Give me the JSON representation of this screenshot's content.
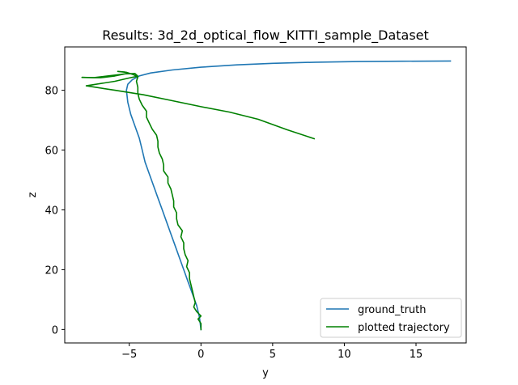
{
  "chart_data": {
    "type": "line",
    "title": "Results: 3d_2d_optical_flow_KITTI_sample_Dataset",
    "xlabel": "y",
    "ylabel": "z",
    "xlim": [
      -9.5,
      18.5
    ],
    "ylim": [
      -4.5,
      94.5
    ],
    "xticks": [
      -5,
      0,
      5,
      10,
      15
    ],
    "yticks": [
      0,
      20,
      40,
      60,
      80
    ],
    "xtick_labels": [
      "−5",
      "0",
      "5",
      "10",
      "15"
    ],
    "ytick_labels": [
      "0",
      "20",
      "40",
      "60",
      "80"
    ],
    "grid": false,
    "legend_position": "lower-right",
    "series": [
      {
        "name": "ground_truth",
        "color": "#1f77b4",
        "points": [
          [
            0.0,
            0.0
          ],
          [
            -0.1,
            4.0
          ],
          [
            -0.3,
            8.0
          ],
          [
            -0.6,
            12.0
          ],
          [
            -0.9,
            16.0
          ],
          [
            -1.2,
            20.0
          ],
          [
            -1.5,
            24.0
          ],
          [
            -1.8,
            28.0
          ],
          [
            -2.1,
            32.0
          ],
          [
            -2.4,
            36.0
          ],
          [
            -2.7,
            40.0
          ],
          [
            -3.0,
            44.0
          ],
          [
            -3.3,
            48.0
          ],
          [
            -3.6,
            52.0
          ],
          [
            -3.9,
            56.0
          ],
          [
            -4.1,
            60.0
          ],
          [
            -4.3,
            64.0
          ],
          [
            -4.6,
            68.0
          ],
          [
            -4.9,
            72.0
          ],
          [
            -5.1,
            76.0
          ],
          [
            -5.2,
            80.0
          ],
          [
            -5.1,
            82.0
          ],
          [
            -4.8,
            83.5
          ],
          [
            -4.3,
            84.8
          ],
          [
            -3.5,
            85.8
          ],
          [
            -2.0,
            86.8
          ],
          [
            0.0,
            87.7
          ],
          [
            2.5,
            88.5
          ],
          [
            5.0,
            89.0
          ],
          [
            8.0,
            89.4
          ],
          [
            11.0,
            89.6
          ],
          [
            14.0,
            89.7
          ],
          [
            17.4,
            89.8
          ]
        ]
      },
      {
        "name": "plotted trajectory",
        "color": "#008000",
        "points": [
          [
            0.0,
            0.0
          ],
          [
            0.0,
            2.0
          ],
          [
            -0.2,
            3.5
          ],
          [
            0.0,
            4.5
          ],
          [
            -0.3,
            6.0
          ],
          [
            -0.5,
            7.5
          ],
          [
            -0.4,
            9.0
          ],
          [
            -0.5,
            11.0
          ],
          [
            -0.6,
            13.0
          ],
          [
            -0.7,
            15.0
          ],
          [
            -0.8,
            17.0
          ],
          [
            -0.8,
            19.0
          ],
          [
            -1.0,
            21.0
          ],
          [
            -0.9,
            23.0
          ],
          [
            -1.1,
            25.0
          ],
          [
            -1.2,
            27.0
          ],
          [
            -1.2,
            29.0
          ],
          [
            -1.4,
            31.0
          ],
          [
            -1.3,
            33.0
          ],
          [
            -1.6,
            35.0
          ],
          [
            -1.7,
            37.0
          ],
          [
            -1.7,
            39.0
          ],
          [
            -1.9,
            41.0
          ],
          [
            -1.9,
            43.0
          ],
          [
            -2.0,
            45.0
          ],
          [
            -2.1,
            47.0
          ],
          [
            -2.3,
            49.0
          ],
          [
            -2.3,
            51.0
          ],
          [
            -2.6,
            53.0
          ],
          [
            -2.6,
            55.0
          ],
          [
            -2.7,
            57.0
          ],
          [
            -2.9,
            59.0
          ],
          [
            -3.0,
            61.0
          ],
          [
            -3.0,
            63.0
          ],
          [
            -3.1,
            65.0
          ],
          [
            -3.4,
            67.0
          ],
          [
            -3.6,
            69.0
          ],
          [
            -3.8,
            71.0
          ],
          [
            -3.8,
            73.0
          ],
          [
            -4.1,
            75.0
          ],
          [
            -4.3,
            77.0
          ],
          [
            -4.4,
            79.0
          ],
          [
            -4.4,
            81.0
          ],
          [
            -4.5,
            83.0
          ],
          [
            -4.4,
            84.5
          ],
          [
            -4.7,
            85.2
          ],
          [
            -5.2,
            86.0
          ],
          [
            -5.8,
            86.3
          ],
          [
            -5.3,
            86.1
          ],
          [
            -5.0,
            85.7
          ],
          [
            -5.6,
            85.3
          ],
          [
            -6.5,
            84.8
          ],
          [
            -7.5,
            84.2
          ],
          [
            -8.3,
            84.3
          ],
          [
            -7.0,
            84.2
          ],
          [
            -6.0,
            84.8
          ],
          [
            -5.3,
            85.5
          ],
          [
            -4.6,
            85.6
          ],
          [
            -4.4,
            84.7
          ],
          [
            -5.0,
            84.1
          ],
          [
            -6.0,
            83.0
          ],
          [
            -8.0,
            81.5
          ],
          [
            -6.0,
            80.0
          ],
          [
            -4.0,
            78.5
          ],
          [
            -2.0,
            76.5
          ],
          [
            0.0,
            74.5
          ],
          [
            2.0,
            72.7
          ],
          [
            4.0,
            70.3
          ],
          [
            6.0,
            66.8
          ],
          [
            7.9,
            63.8
          ]
        ]
      }
    ]
  }
}
